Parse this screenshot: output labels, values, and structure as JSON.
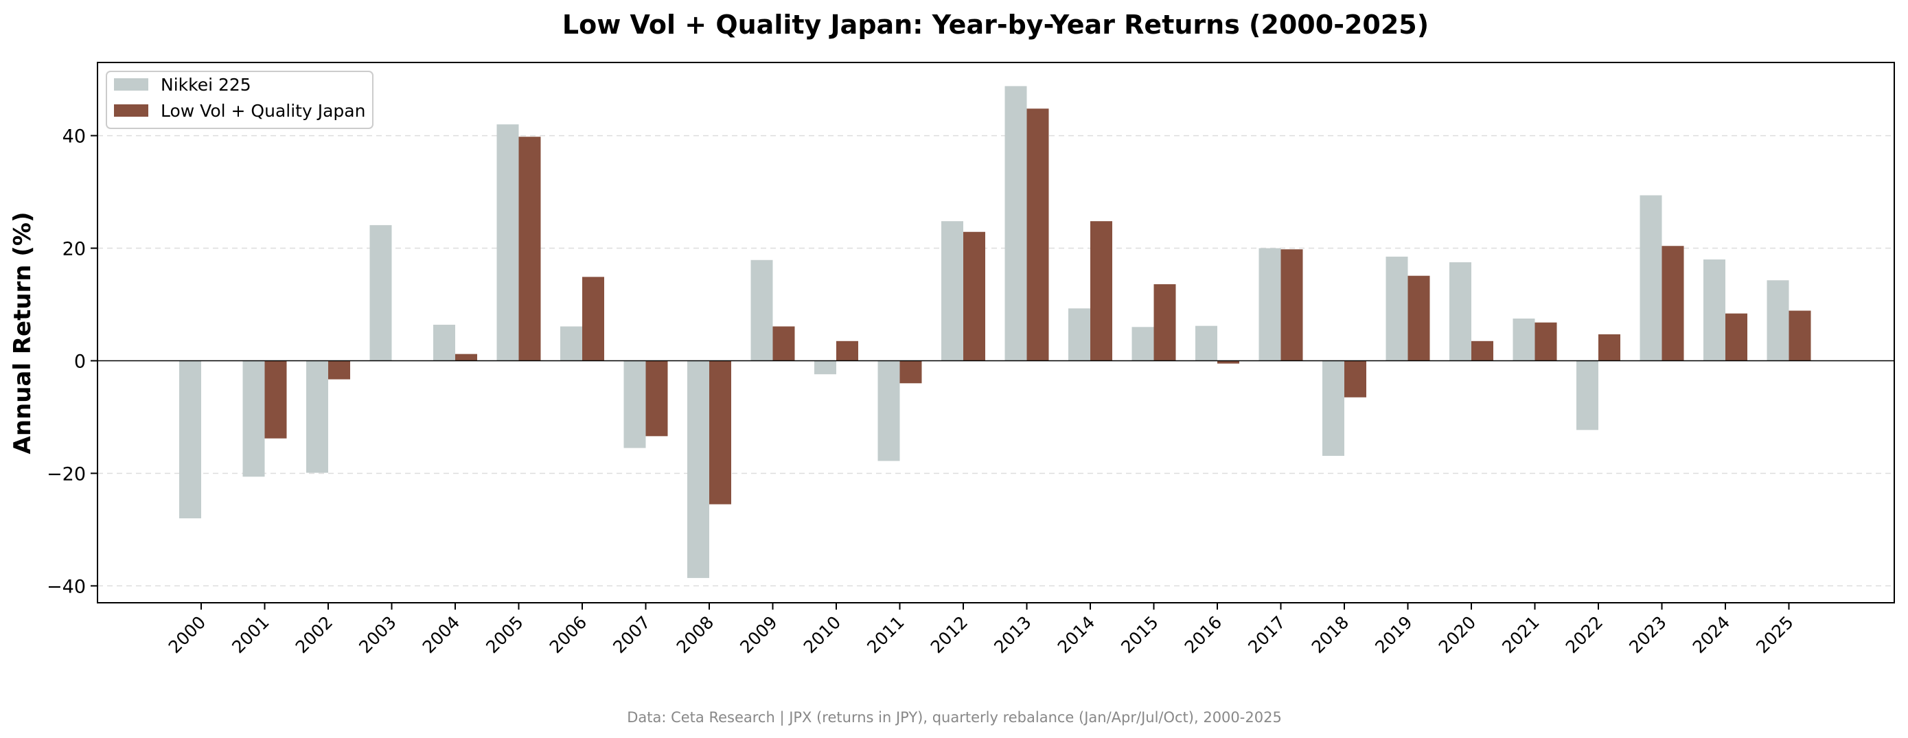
{
  "chart_data": {
    "type": "bar",
    "title": "Low Vol + Quality Japan: Year-by-Year Returns (2000-2025)",
    "xlabel": "",
    "ylabel": "Annual Return (%)",
    "ylim": [
      -43,
      53
    ],
    "yticks": [
      -40,
      -20,
      0,
      20,
      40
    ],
    "ytick_labels": [
      "−40",
      "−20",
      "0",
      "20",
      "40"
    ],
    "grid": "horizontal dashed",
    "legend_position": "top-left",
    "categories": [
      "2000",
      "2001",
      "2002",
      "2003",
      "2004",
      "2005",
      "2006",
      "2007",
      "2008",
      "2009",
      "2010",
      "2011",
      "2012",
      "2013",
      "2014",
      "2015",
      "2016",
      "2017",
      "2018",
      "2019",
      "2020",
      "2021",
      "2022",
      "2023",
      "2024",
      "2025"
    ],
    "series": [
      {
        "name": "Nikkei 225",
        "color": "#c2cccc",
        "values": [
          -28.0,
          -20.6,
          -19.9,
          24.1,
          6.4,
          42.0,
          6.1,
          -15.5,
          -38.6,
          17.9,
          -2.4,
          -17.8,
          24.8,
          48.8,
          9.3,
          6.0,
          6.2,
          20.0,
          -16.9,
          18.5,
          17.5,
          7.5,
          -12.3,
          29.4,
          18.0,
          14.3
        ]
      },
      {
        "name": "Low Vol + Quality Japan",
        "color": "#87503e",
        "values": [
          null,
          -13.8,
          -3.3,
          null,
          1.2,
          39.8,
          14.9,
          -13.4,
          -25.5,
          6.1,
          3.5,
          -4.0,
          22.9,
          44.8,
          24.8,
          13.6,
          -0.5,
          19.8,
          -6.5,
          15.1,
          3.5,
          6.8,
          4.7,
          20.4,
          8.4,
          8.9
        ]
      }
    ],
    "footnote": "Data: Ceta Research | JPX (returns in JPY), quarterly rebalance (Jan/Apr/Jul/Oct), 2000-2025"
  }
}
